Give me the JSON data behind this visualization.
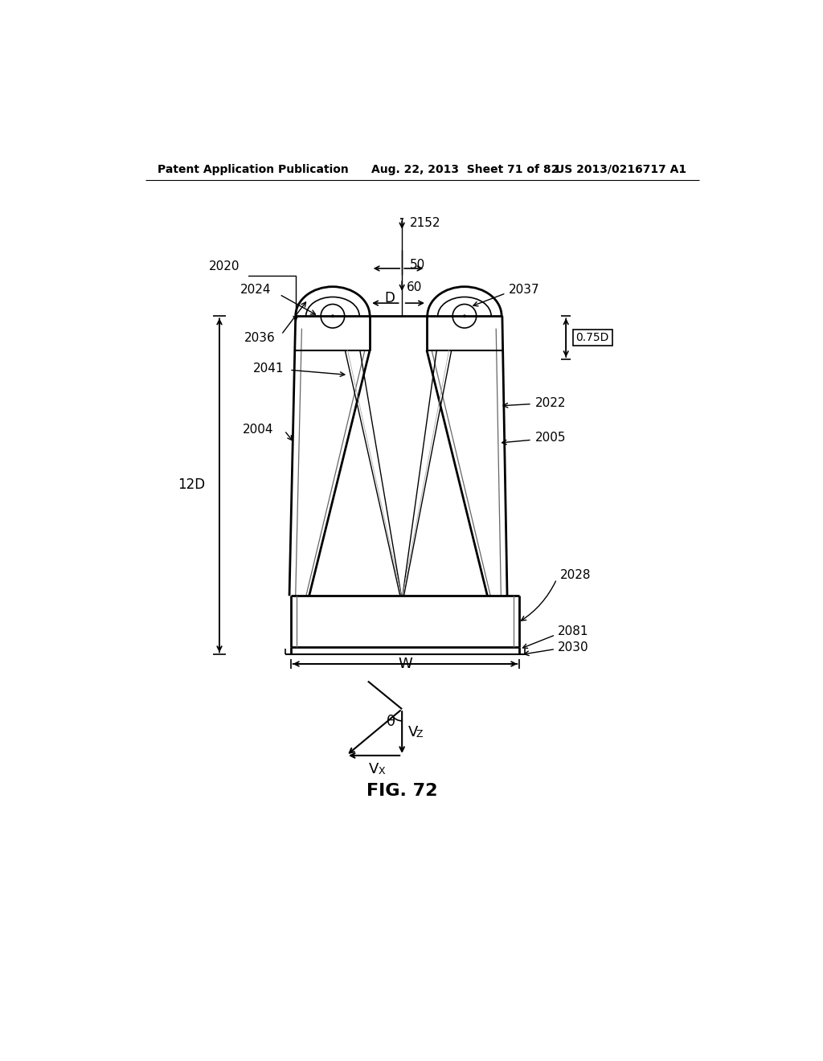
{
  "header_left": "Patent Application Publication",
  "header_center": "Aug. 22, 2013  Sheet 71 of 82",
  "header_right": "US 2013/0216717 A1",
  "fig_label": "FIG. 72",
  "bg_color": "#ffffff",
  "line_color": "#000000"
}
